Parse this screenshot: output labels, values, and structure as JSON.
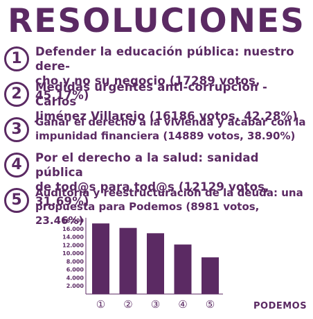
{
  "title": "RESOLUCIONES",
  "brand": "PODEMOS",
  "colors": {
    "primary": "#5b2a63"
  },
  "resolutions": [
    {
      "number": "1",
      "line1": "Defender la educación pública: nuestro dere-",
      "line2": "cho y no su negocio (17289 votos, 45.17%)"
    },
    {
      "number": "2",
      "line1": "Medidas urgentes anti-corrupción - Carlos",
      "line2": "Jiménez Villarejo (16186 votos, 42.28%)"
    },
    {
      "number": "3",
      "line1": "Ganar el derecho a la vivienda y acabar con la",
      "line2": "impunidad financiera (14889 votos, 38.90%)"
    },
    {
      "number": "4",
      "line1": "Por el derecho a la salud: sanidad pública",
      "line2": "de tod@s para tod@s (12129 votos, 31.69%)"
    },
    {
      "number": "5",
      "line1": "Auditoría y reestructuración de la deuda: una",
      "line2": "propuesta para Podemos (8981 votos, 23.46%)"
    }
  ],
  "chart_data": {
    "type": "bar",
    "categories": [
      "①",
      "②",
      "③",
      "④",
      "⑤"
    ],
    "values": [
      17289,
      16186,
      14889,
      12129,
      8981
    ],
    "yticks": [
      "18.000",
      "16.000",
      "14.000",
      "12.000",
      "10.000",
      "8.000",
      "6.000",
      "4.000",
      "2.000"
    ],
    "ylim": [
      0,
      18000
    ],
    "grid": false,
    "color": "#5b2a63"
  }
}
